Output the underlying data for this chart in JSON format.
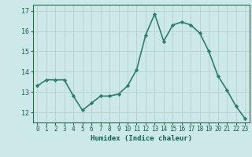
{
  "x": [
    0,
    1,
    2,
    3,
    4,
    5,
    6,
    7,
    8,
    9,
    10,
    11,
    12,
    13,
    14,
    15,
    16,
    17,
    18,
    19,
    20,
    21,
    22,
    23
  ],
  "y": [
    13.3,
    13.6,
    13.6,
    13.6,
    12.8,
    12.1,
    12.45,
    12.8,
    12.8,
    12.9,
    13.3,
    14.1,
    15.8,
    16.85,
    15.5,
    16.3,
    16.45,
    16.3,
    15.9,
    15.0,
    13.8,
    13.1,
    12.3,
    11.7
  ],
  "xlabel": "Humidex (Indice chaleur)",
  "ylim": [
    11.5,
    17.3
  ],
  "xlim": [
    -0.5,
    23.5
  ],
  "yticks": [
    12,
    13,
    14,
    15,
    16,
    17
  ],
  "xticks": [
    0,
    1,
    2,
    3,
    4,
    5,
    6,
    7,
    8,
    9,
    10,
    11,
    12,
    13,
    14,
    15,
    16,
    17,
    18,
    19,
    20,
    21,
    22,
    23
  ],
  "line_color": "#2e7d6e",
  "marker": "D",
  "marker_size": 2.2,
  "bg_color": "#cce8e8",
  "grid_color": "#b8d4d4",
  "axis_color": "#336655",
  "tick_label_color": "#1a5c50",
  "xlabel_color": "#1a5c50",
  "line_width": 1.2,
  "tick_fontsize": 5.5,
  "xlabel_fontsize": 6.5
}
